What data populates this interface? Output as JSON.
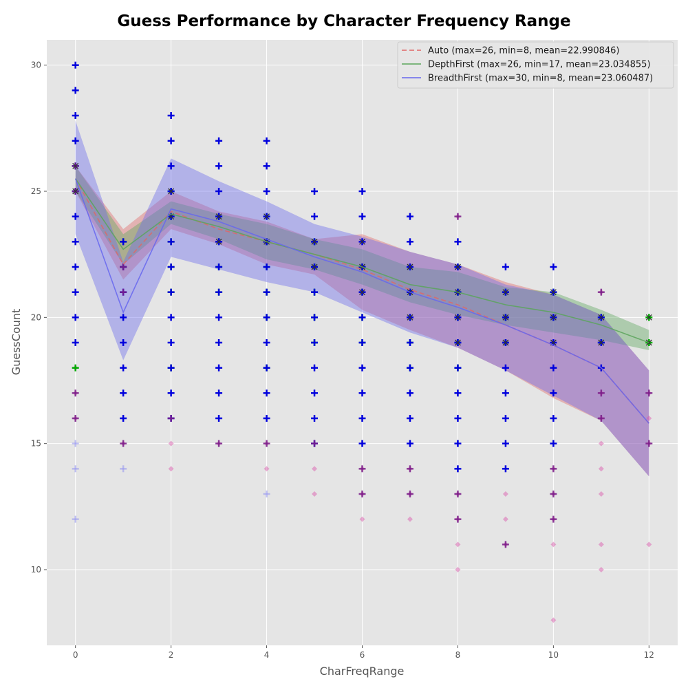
{
  "chart_data": {
    "type": "line",
    "title": "Guess Performance by Character Frequency Range",
    "xlabel": "CharFreqRange",
    "ylabel": "GuessCount",
    "xlim": [
      -0.6,
      12.6
    ],
    "ylim": [
      7,
      31
    ],
    "xticks": [
      0,
      2,
      4,
      6,
      8,
      10,
      12
    ],
    "yticks": [
      10,
      15,
      20,
      25,
      30
    ],
    "grid": true,
    "legend_position": "top-right",
    "x": [
      0,
      1,
      2,
      3,
      4,
      5,
      6,
      7,
      8,
      9,
      10,
      11,
      12
    ],
    "series": [
      {
        "name": "Auto (max=26, min=8, mean=22.990846)",
        "color": "#e06666",
        "line_style": "dashed",
        "mean": [
          25.5,
          22.1,
          24.2,
          23.5,
          23.0,
          22.5,
          21.9,
          21.1,
          20.5,
          19.7,
          18.9,
          18.0,
          15.8
        ],
        "band_low": [
          25.0,
          21.5,
          23.5,
          22.9,
          22.1,
          21.7,
          20.3,
          19.5,
          18.8,
          17.9,
          16.8,
          15.9,
          13.7
        ],
        "band_high": [
          26.0,
          23.5,
          25.0,
          24.2,
          23.8,
          23.1,
          23.3,
          22.6,
          22.1,
          21.4,
          20.9,
          20.1,
          17.9
        ],
        "points": [
          [
            0,
            18
          ],
          [
            0,
            17
          ],
          [
            0,
            16
          ],
          [
            1,
            15
          ],
          [
            2,
            15
          ],
          [
            2,
            14
          ],
          [
            3,
            15
          ],
          [
            4,
            14
          ],
          [
            4,
            15
          ],
          [
            5,
            14
          ],
          [
            5,
            13
          ],
          [
            6,
            14
          ],
          [
            6,
            13
          ],
          [
            6,
            12
          ],
          [
            7,
            12
          ],
          [
            7,
            13
          ],
          [
            7,
            14
          ],
          [
            8,
            12
          ],
          [
            8,
            11
          ],
          [
            8,
            10
          ],
          [
            8,
            13
          ],
          [
            8,
            24
          ],
          [
            9,
            12
          ],
          [
            9,
            11
          ],
          [
            9,
            13
          ],
          [
            10,
            13
          ],
          [
            10,
            12
          ],
          [
            10,
            11
          ],
          [
            10,
            8
          ],
          [
            10,
            14
          ],
          [
            11,
            21
          ],
          [
            11,
            17
          ],
          [
            11,
            16
          ],
          [
            11,
            15
          ],
          [
            11,
            14
          ],
          [
            11,
            13
          ],
          [
            11,
            11
          ],
          [
            11,
            10
          ],
          [
            12,
            17
          ],
          [
            12,
            16
          ],
          [
            12,
            15
          ],
          [
            12,
            11
          ]
        ]
      },
      {
        "name": "DepthFirst (max=26, min=17, mean=23.034855)",
        "color": "#5aa55a",
        "line_style": "solid",
        "mean": [
          25.5,
          22.7,
          24.1,
          23.6,
          23.0,
          22.5,
          22.0,
          21.3,
          21.0,
          20.5,
          20.2,
          19.7,
          19.0
        ],
        "band_low": [
          25.0,
          22.1,
          23.7,
          23.1,
          22.3,
          21.9,
          21.3,
          20.6,
          20.1,
          19.7,
          19.4,
          19.1,
          18.7
        ],
        "band_high": [
          26.0,
          23.3,
          24.6,
          24.1,
          23.7,
          23.1,
          22.7,
          22.0,
          21.8,
          21.2,
          21.0,
          20.3,
          19.5
        ],
        "points": [
          [
            0,
            26
          ],
          [
            0,
            25
          ],
          [
            0,
            18
          ],
          [
            1,
            23
          ],
          [
            1,
            22
          ],
          [
            2,
            25
          ],
          [
            2,
            24
          ],
          [
            2,
            23
          ],
          [
            2,
            22
          ],
          [
            2,
            21
          ],
          [
            2,
            18
          ],
          [
            3,
            24
          ],
          [
            3,
            23
          ],
          [
            3,
            22
          ],
          [
            3,
            21
          ],
          [
            4,
            24
          ],
          [
            4,
            23
          ],
          [
            4,
            22
          ],
          [
            4,
            21
          ],
          [
            4,
            20
          ],
          [
            4,
            18
          ],
          [
            5,
            23
          ],
          [
            5,
            22
          ],
          [
            5,
            21
          ],
          [
            5,
            20
          ],
          [
            5,
            19
          ],
          [
            6,
            22
          ],
          [
            6,
            21
          ],
          [
            6,
            20
          ],
          [
            6,
            19
          ],
          [
            7,
            22
          ],
          [
            7,
            21
          ],
          [
            7,
            20
          ],
          [
            7,
            19
          ],
          [
            7,
            18
          ],
          [
            8,
            22
          ],
          [
            8,
            21
          ],
          [
            8,
            20
          ],
          [
            8,
            19
          ],
          [
            8,
            18
          ],
          [
            9,
            21
          ],
          [
            9,
            20
          ],
          [
            9,
            19
          ],
          [
            10,
            21
          ],
          [
            10,
            20
          ],
          [
            11,
            20
          ],
          [
            11,
            19
          ],
          [
            12,
            19
          ],
          [
            12,
            20
          ]
        ]
      },
      {
        "name": "BreadthFirst (max=30, min=8, mean=23.060487)",
        "color": "#6666ee",
        "line_style": "solid",
        "mean": [
          25.5,
          20.2,
          24.3,
          23.8,
          23.1,
          22.4,
          21.8,
          21.0,
          20.4,
          19.7,
          18.9,
          18.0,
          15.8
        ],
        "band_low": [
          23.3,
          18.3,
          22.4,
          21.9,
          21.4,
          21.0,
          20.2,
          19.4,
          18.8,
          17.9,
          16.9,
          15.9,
          13.7
        ],
        "band_high": [
          27.8,
          22.2,
          26.3,
          25.4,
          24.6,
          23.7,
          23.2,
          22.6,
          22.1,
          21.3,
          20.9,
          20.1,
          17.9
        ],
        "points": [
          [
            0,
            30
          ],
          [
            0,
            29
          ],
          [
            0,
            28
          ],
          [
            0,
            27
          ],
          [
            0,
            26
          ],
          [
            0,
            25
          ],
          [
            0,
            24
          ],
          [
            0,
            23
          ],
          [
            0,
            22
          ],
          [
            0,
            21
          ],
          [
            0,
            20
          ],
          [
            0,
            19
          ],
          [
            0,
            15
          ],
          [
            0,
            14
          ],
          [
            0,
            12
          ],
          [
            1,
            23
          ],
          [
            1,
            22
          ],
          [
            1,
            21
          ],
          [
            1,
            20
          ],
          [
            1,
            19
          ],
          [
            1,
            18
          ],
          [
            1,
            17
          ],
          [
            1,
            16
          ],
          [
            1,
            14
          ],
          [
            2,
            28
          ],
          [
            2,
            27
          ],
          [
            2,
            26
          ],
          [
            2,
            25
          ],
          [
            2,
            24
          ],
          [
            2,
            23
          ],
          [
            2,
            22
          ],
          [
            2,
            21
          ],
          [
            2,
            20
          ],
          [
            2,
            19
          ],
          [
            2,
            18
          ],
          [
            2,
            17
          ],
          [
            2,
            16
          ],
          [
            3,
            27
          ],
          [
            3,
            26
          ],
          [
            3,
            25
          ],
          [
            3,
            24
          ],
          [
            3,
            23
          ],
          [
            3,
            22
          ],
          [
            3,
            21
          ],
          [
            3,
            20
          ],
          [
            3,
            19
          ],
          [
            3,
            18
          ],
          [
            3,
            17
          ],
          [
            3,
            16
          ],
          [
            4,
            27
          ],
          [
            4,
            26
          ],
          [
            4,
            25
          ],
          [
            4,
            24
          ],
          [
            4,
            23
          ],
          [
            4,
            22
          ],
          [
            4,
            21
          ],
          [
            4,
            20
          ],
          [
            4,
            19
          ],
          [
            4,
            18
          ],
          [
            4,
            17
          ],
          [
            4,
            16
          ],
          [
            4,
            13
          ],
          [
            5,
            25
          ],
          [
            5,
            24
          ],
          [
            5,
            23
          ],
          [
            5,
            22
          ],
          [
            5,
            21
          ],
          [
            5,
            20
          ],
          [
            5,
            19
          ],
          [
            5,
            18
          ],
          [
            5,
            17
          ],
          [
            5,
            16
          ],
          [
            5,
            15
          ],
          [
            6,
            25
          ],
          [
            6,
            24
          ],
          [
            6,
            23
          ],
          [
            6,
            22
          ],
          [
            6,
            21
          ],
          [
            6,
            20
          ],
          [
            6,
            19
          ],
          [
            6,
            18
          ],
          [
            6,
            17
          ],
          [
            6,
            16
          ],
          [
            6,
            15
          ],
          [
            7,
            24
          ],
          [
            7,
            23
          ],
          [
            7,
            22
          ],
          [
            7,
            21
          ],
          [
            7,
            20
          ],
          [
            7,
            19
          ],
          [
            7,
            18
          ],
          [
            7,
            17
          ],
          [
            7,
            16
          ],
          [
            7,
            15
          ],
          [
            8,
            23
          ],
          [
            8,
            22
          ],
          [
            8,
            21
          ],
          [
            8,
            20
          ],
          [
            8,
            19
          ],
          [
            8,
            18
          ],
          [
            8,
            17
          ],
          [
            8,
            16
          ],
          [
            8,
            15
          ],
          [
            8,
            14
          ],
          [
            9,
            22
          ],
          [
            9,
            21
          ],
          [
            9,
            20
          ],
          [
            9,
            19
          ],
          [
            9,
            18
          ],
          [
            9,
            17
          ],
          [
            9,
            16
          ],
          [
            9,
            15
          ],
          [
            9,
            14
          ],
          [
            10,
            22
          ],
          [
            10,
            21
          ],
          [
            10,
            20
          ],
          [
            10,
            19
          ],
          [
            10,
            18
          ],
          [
            10,
            17
          ],
          [
            10,
            16
          ],
          [
            10,
            15
          ],
          [
            11,
            20
          ],
          [
            11,
            19
          ],
          [
            11,
            18
          ]
        ]
      }
    ],
    "overlay_marks": {
      "purple_plus": [
        [
          0,
          26
        ],
        [
          0,
          25
        ],
        [
          0,
          17
        ],
        [
          0,
          16
        ],
        [
          1,
          22
        ],
        [
          1,
          21
        ],
        [
          1,
          15
        ],
        [
          2,
          16
        ],
        [
          3,
          15
        ],
        [
          4,
          15
        ],
        [
          5,
          15
        ],
        [
          6,
          14
        ],
        [
          6,
          13
        ],
        [
          7,
          14
        ],
        [
          7,
          13
        ],
        [
          8,
          24
        ],
        [
          8,
          13
        ],
        [
          8,
          12
        ],
        [
          9,
          11
        ],
        [
          10,
          14
        ],
        [
          10,
          13
        ],
        [
          10,
          12
        ],
        [
          11,
          21
        ],
        [
          11,
          17
        ],
        [
          11,
          16
        ],
        [
          12,
          17
        ],
        [
          12,
          15
        ]
      ],
      "x_marks": [
        [
          0,
          26
        ],
        [
          0,
          25
        ],
        [
          2,
          25
        ],
        [
          2,
          24
        ],
        [
          3,
          24
        ],
        [
          3,
          23
        ],
        [
          4,
          24
        ],
        [
          4,
          23
        ],
        [
          5,
          23
        ],
        [
          5,
          22
        ],
        [
          6,
          23
        ],
        [
          6,
          22
        ],
        [
          6,
          21
        ],
        [
          7,
          22
        ],
        [
          7,
          21
        ],
        [
          7,
          20
        ],
        [
          8,
          22
        ],
        [
          8,
          21
        ],
        [
          8,
          20
        ],
        [
          8,
          19
        ],
        [
          9,
          21
        ],
        [
          9,
          20
        ],
        [
          9,
          19
        ],
        [
          10,
          21
        ],
        [
          10,
          20
        ],
        [
          10,
          19
        ],
        [
          11,
          20
        ],
        [
          11,
          19
        ],
        [
          12,
          19
        ],
        [
          12,
          20
        ]
      ]
    }
  }
}
